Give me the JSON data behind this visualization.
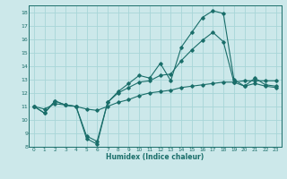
{
  "title": "",
  "xlabel": "Humidex (Indice chaleur)",
  "bg_color": "#cce8ea",
  "grid_color": "#a8d5d8",
  "line_color": "#1a6e6a",
  "xlim": [
    -0.5,
    23.5
  ],
  "ylim": [
    8,
    18.5
  ],
  "yticks": [
    8,
    9,
    10,
    11,
    12,
    13,
    14,
    15,
    16,
    17,
    18
  ],
  "xticks": [
    0,
    1,
    2,
    3,
    4,
    5,
    6,
    7,
    8,
    9,
    10,
    11,
    12,
    13,
    14,
    15,
    16,
    17,
    18,
    19,
    20,
    21,
    22,
    23
  ],
  "line1_x": [
    0,
    1,
    2,
    3,
    4,
    5,
    6,
    7,
    8,
    9,
    10,
    11,
    12,
    13,
    14,
    15,
    16,
    17,
    18,
    19,
    20,
    21,
    22,
    23
  ],
  "line1_y": [
    11.0,
    10.5,
    11.4,
    11.1,
    11.0,
    8.6,
    8.2,
    11.3,
    12.1,
    12.7,
    13.3,
    13.1,
    14.2,
    12.9,
    15.4,
    16.5,
    17.6,
    18.1,
    17.9,
    13.0,
    12.5,
    13.1,
    12.6,
    12.5
  ],
  "line2_x": [
    0,
    1,
    2,
    3,
    4,
    5,
    6,
    7,
    8,
    9,
    10,
    11,
    12,
    13,
    14,
    15,
    16,
    17,
    18,
    19,
    20,
    21,
    22,
    23
  ],
  "line2_y": [
    11.0,
    10.5,
    11.4,
    11.1,
    11.0,
    8.8,
    8.4,
    11.3,
    12.0,
    12.4,
    12.8,
    12.9,
    13.3,
    13.4,
    14.4,
    15.2,
    15.9,
    16.5,
    15.8,
    12.8,
    12.5,
    12.7,
    12.5,
    12.4
  ],
  "line3_x": [
    0,
    1,
    2,
    3,
    4,
    5,
    6,
    7,
    8,
    9,
    10,
    11,
    12,
    13,
    14,
    15,
    16,
    17,
    18,
    19,
    20,
    21,
    22,
    23
  ],
  "line3_y": [
    11.0,
    10.8,
    11.2,
    11.1,
    11.0,
    10.8,
    10.7,
    11.0,
    11.3,
    11.5,
    11.8,
    12.0,
    12.1,
    12.2,
    12.4,
    12.5,
    12.6,
    12.7,
    12.8,
    12.8,
    12.9,
    12.9,
    12.9,
    12.9
  ]
}
